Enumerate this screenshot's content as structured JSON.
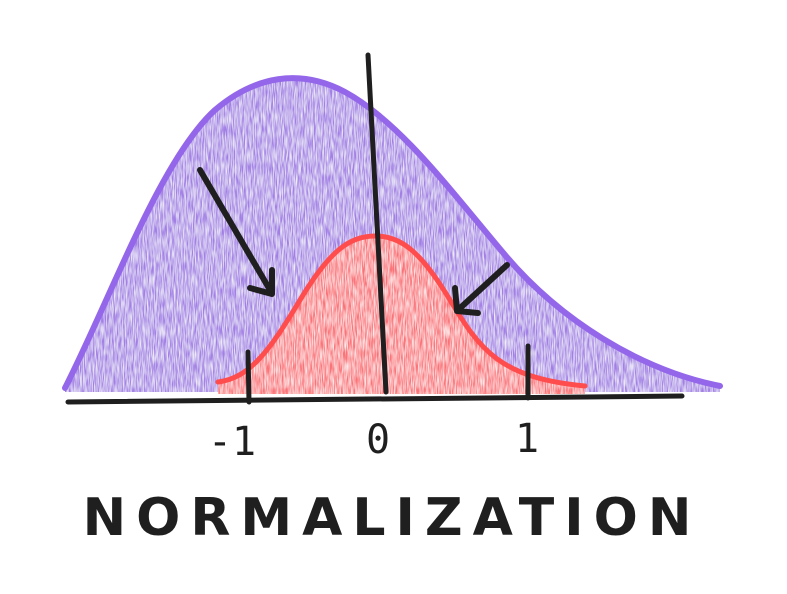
{
  "caption": "NORMALIZATION",
  "ticks": [
    {
      "label": "-1",
      "value": -1
    },
    {
      "label": "0",
      "value": 0
    },
    {
      "label": "1",
      "value": 1
    }
  ],
  "colors": {
    "original_fill": "#9b75e3",
    "original_stroke": "#9467ea",
    "normalized_fill": "#ff7373",
    "normalized_stroke": "#ff4d4d",
    "ink": "#1f1f1f"
  },
  "icons": [
    "arrow-icon",
    "arrow-icon"
  ]
}
